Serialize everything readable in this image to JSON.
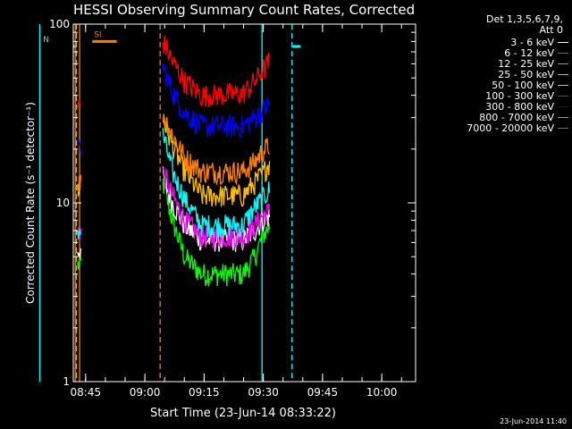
{
  "chart_data": {
    "type": "line",
    "title": "HESSI Observing Summary Count Rates, Corrected",
    "xlabel": "Start Time (23-Jun-14 08:33:22)",
    "ylabel": "Corrected Count Rate (s⁻¹ detector⁻¹)",
    "yscale": "log",
    "ylim": [
      1,
      100
    ],
    "xlim_minutes": [
      8.5,
      95.2
    ],
    "y_ticks": [
      {
        "value": 1,
        "label": "1"
      },
      {
        "value": 10,
        "label": "10"
      },
      {
        "value": 100,
        "label": "100"
      }
    ],
    "x_ticks": [
      {
        "minutes": 11.63,
        "label": "08:45"
      },
      {
        "minutes": 26.63,
        "label": "09:00"
      },
      {
        "minutes": 41.63,
        "label": "09:15"
      },
      {
        "minutes": 56.63,
        "label": "09:30"
      },
      {
        "minutes": 71.63,
        "label": "09:45"
      },
      {
        "minutes": 86.63,
        "label": "10:00"
      }
    ],
    "legend_title": [
      "Det 1,3,5,6,7,9,",
      "Att 0"
    ],
    "legend_position": "right",
    "footer_date": "23-Jun-2014 11:40",
    "series": [
      {
        "name": "3 - 6 keV",
        "color": "#ffffff",
        "values": [
          [
            9.6,
            5.5
          ],
          [
            10.4,
            5.5
          ],
          [
            31.2,
            14
          ],
          [
            33.6,
            10
          ],
          [
            36.7,
            7.5
          ],
          [
            41.0,
            6.2
          ],
          [
            51.5,
            6.2
          ],
          [
            54.5,
            7
          ],
          [
            56.4,
            8
          ],
          [
            58.3,
            8.5
          ]
        ]
      },
      {
        "name": "6 - 12 keV",
        "color": "#ff00ff",
        "values": [
          [
            9.6,
            7
          ],
          [
            10.4,
            7
          ],
          [
            31.2,
            15
          ],
          [
            33.6,
            11
          ],
          [
            36.7,
            8
          ],
          [
            41.0,
            6.5
          ],
          [
            51.5,
            6.5
          ],
          [
            54.5,
            7.5
          ],
          [
            56.4,
            8.5
          ],
          [
            58.3,
            9
          ]
        ]
      },
      {
        "name": "12 - 25 keV",
        "color": "#00ff00",
        "values": [
          [
            9.6,
            4.5
          ],
          [
            10.4,
            4.5
          ],
          [
            31.2,
            13
          ],
          [
            33.6,
            8
          ],
          [
            36.7,
            5
          ],
          [
            41.0,
            4
          ],
          [
            51.5,
            4
          ],
          [
            54.5,
            5
          ],
          [
            56.4,
            6.5
          ],
          [
            58.3,
            7.5
          ]
        ]
      },
      {
        "name": "25 - 50 keV",
        "color": "#00ffff",
        "values": [
          [
            9.6,
            7
          ],
          [
            10.4,
            7
          ],
          [
            31.2,
            24
          ],
          [
            33.6,
            15
          ],
          [
            36.7,
            10.5
          ],
          [
            41.0,
            7.5
          ],
          [
            51.5,
            7.5
          ],
          [
            54.5,
            9.5
          ],
          [
            56.4,
            10.5
          ],
          [
            58.3,
            12
          ]
        ]
      },
      {
        "name": "50 - 100 keV",
        "color": "#ffbf00",
        "values": [
          [
            9.6,
            12
          ],
          [
            10.4,
            12
          ],
          [
            31.2,
            30
          ],
          [
            33.6,
            21
          ],
          [
            36.7,
            15
          ],
          [
            41.0,
            11
          ],
          [
            51.5,
            11
          ],
          [
            54.5,
            13
          ],
          [
            56.4,
            14.5
          ],
          [
            58.3,
            17
          ]
        ]
      },
      {
        "name": "100 - 300 keV",
        "color": "#ff0000",
        "values": [
          [
            9.6,
            35
          ],
          [
            10.4,
            35
          ],
          [
            31.2,
            80
          ],
          [
            33.6,
            62
          ],
          [
            36.7,
            48
          ],
          [
            41.0,
            40
          ],
          [
            51.5,
            41
          ],
          [
            54.5,
            48
          ],
          [
            56.4,
            55
          ],
          [
            58.3,
            62
          ]
        ]
      },
      {
        "name": "300 - 800 keV",
        "color": "#0000ff",
        "values": [
          [
            9.6,
            20
          ],
          [
            10.4,
            20
          ],
          [
            31.2,
            57
          ],
          [
            33.6,
            42
          ],
          [
            36.7,
            32
          ],
          [
            41.0,
            27
          ],
          [
            51.5,
            27
          ],
          [
            54.5,
            30
          ],
          [
            56.4,
            33
          ],
          [
            58.3,
            36
          ]
        ]
      },
      {
        "name": "800 - 7000 keV",
        "color": "#ff8000",
        "values": [
          [
            9.6,
            13
          ],
          [
            10.4,
            13
          ],
          [
            31.2,
            32
          ],
          [
            33.6,
            24
          ],
          [
            36.7,
            18
          ],
          [
            41.0,
            15
          ],
          [
            51.5,
            15
          ],
          [
            54.5,
            17
          ],
          [
            56.4,
            19.5
          ],
          [
            58.3,
            21
          ]
        ]
      },
      {
        "name": "7000 - 20000 keV",
        "color": "#a86800",
        "values": []
      }
    ],
    "flags": {
      "saa": {
        "label": "SI",
        "color": "#ff8000",
        "level": 80,
        "ranges": [
          [
            13.3,
            19.5
          ]
        ]
      },
      "night": {
        "label": "N",
        "color": "#00ffff",
        "level": 75,
        "ranges": [
          [
            0.4,
            9.3
          ],
          [
            64.1,
            66.1
          ]
        ]
      }
    },
    "markers": [
      {
        "minutes": 9.3,
        "color": "#00ffff",
        "style": "dashed"
      },
      {
        "minutes": 9.0,
        "color": "#ff8000",
        "style": "solid"
      },
      {
        "minutes": 10.1,
        "color": "#ff8000",
        "style": "solid"
      },
      {
        "minutes": 30.5,
        "color": "#ff8000",
        "style": "dashed"
      },
      {
        "minutes": 56.3,
        "color": "#00ffff",
        "style": "solid"
      },
      {
        "minutes": 63.9,
        "color": "#00ffff",
        "style": "dashed"
      },
      {
        "minutes": 0.0,
        "color": "#00ffff",
        "style": "solid"
      }
    ]
  }
}
